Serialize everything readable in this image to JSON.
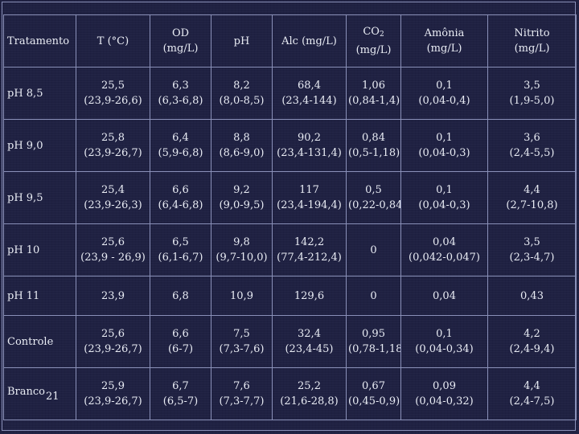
{
  "table": {
    "headers": [
      {
        "lines": [
          "Tratamento"
        ]
      },
      {
        "lines": [
          "T (°C)"
        ]
      },
      {
        "lines": [
          "OD",
          "(mg/L)"
        ]
      },
      {
        "lines": [
          "pH"
        ]
      },
      {
        "lines": [
          "Alc (mg/L)"
        ]
      },
      {
        "lines": [
          "CO",
          "(mg/L)"
        ],
        "subscript": "2"
      },
      {
        "lines": [
          "Amônia",
          "(mg/L)"
        ]
      },
      {
        "lines": [
          "Nitrito",
          "(mg/L)"
        ]
      }
    ],
    "rows": [
      {
        "treatment": "pH 8,5",
        "cells": [
          {
            "value": "25,5",
            "range": "(23,9-26,6)"
          },
          {
            "value": "6,3",
            "range": "(6,3-6,8)"
          },
          {
            "value": "8,2",
            "range": "(8,0-8,5)"
          },
          {
            "value": "68,4",
            "range": "(23,4-144)"
          },
          {
            "value": "1,06",
            "range": "(0,84-1,4)"
          },
          {
            "value": "0,1",
            "range": "(0,04-0,4)"
          },
          {
            "value": "3,5",
            "range": "(1,9-5,0)"
          }
        ]
      },
      {
        "treatment": "pH 9,0",
        "cells": [
          {
            "value": "25,8",
            "range": "(23,9-26,7)"
          },
          {
            "value": "6,4",
            "range": "(5,9-6,8)"
          },
          {
            "value": "8,8",
            "range": "(8,6-9,0)"
          },
          {
            "value": "90,2",
            "range": "(23,4-131,4)"
          },
          {
            "value": "0,84",
            "range": "(0,5-1,18)"
          },
          {
            "value": "0,1",
            "range": "(0,04-0,3)"
          },
          {
            "value": "3,6",
            "range": "(2,4-5,5)"
          }
        ]
      },
      {
        "treatment": "pH 9,5",
        "cells": [
          {
            "value": "25,4",
            "range": "(23,9-26,3)"
          },
          {
            "value": "6,6",
            "range": "(6,4-6,8)"
          },
          {
            "value": "9,2",
            "range": "(9,0-9,5)"
          },
          {
            "value": "117",
            "range": "(23,4-194,4)"
          },
          {
            "value": "0,5",
            "range": "(0,22-0,84)"
          },
          {
            "value": "0,1",
            "range": "(0,04-0,3)"
          },
          {
            "value": "4,4",
            "range": "(2,7-10,8)"
          }
        ]
      },
      {
        "treatment": "pH 10",
        "cells": [
          {
            "value": "25,6",
            "range": "(23,9 - 26,9)"
          },
          {
            "value": "6,5",
            "range": "(6,1-6,7)"
          },
          {
            "value": "9,8",
            "range": "(9,7-10,0)"
          },
          {
            "value": "142,2",
            "range": "(77,4-212,4)"
          },
          {
            "value": "0",
            "range": ""
          },
          {
            "value": "0,04",
            "range": "(0,042-0,047)"
          },
          {
            "value": "3,5",
            "range": "(2,3-4,7)"
          }
        ]
      },
      {
        "treatment": "pH 11",
        "short": true,
        "cells": [
          {
            "value": "23,9",
            "range": ""
          },
          {
            "value": "6,8",
            "range": ""
          },
          {
            "value": "10,9",
            "range": ""
          },
          {
            "value": "129,6",
            "range": ""
          },
          {
            "value": "0",
            "range": ""
          },
          {
            "value": "0,04",
            "range": ""
          },
          {
            "value": "0,43",
            "range": ""
          }
        ]
      },
      {
        "treatment": "Controle",
        "cells": [
          {
            "value": "25,6",
            "range": "(23,9-26,7)"
          },
          {
            "value": "6,6",
            "range": "(6-7)"
          },
          {
            "value": "7,5",
            "range": "(7,3-7,6)"
          },
          {
            "value": "32,4",
            "range": "(23,4-45)"
          },
          {
            "value": "0,95",
            "range": "(0,78-1,18)"
          },
          {
            "value": "0,1",
            "range": "(0,04-0,34)"
          },
          {
            "value": "4,2",
            "range": "(2,4-9,4)"
          }
        ]
      },
      {
        "treatment": "Branco",
        "slide_number": "21",
        "cells": [
          {
            "value": "25,9",
            "range": "(23,9-26,7)"
          },
          {
            "value": "6,7",
            "range": "(6,5-7)"
          },
          {
            "value": "7,6",
            "range": "(7,3-7,7)"
          },
          {
            "value": "25,2",
            "range": "(21,6-28,8)"
          },
          {
            "value": "0,67",
            "range": "(0,45-0,9)"
          },
          {
            "value": "0,09",
            "range": "(0,04-0,32)"
          },
          {
            "value": "4,4",
            "range": "(2,4-7,5)"
          }
        ]
      }
    ]
  }
}
